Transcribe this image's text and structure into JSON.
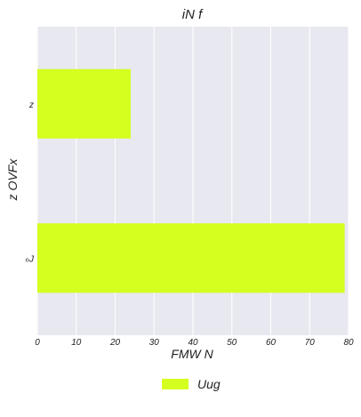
{
  "chart_data": {
    "type": "bar",
    "orientation": "horizontal",
    "title": "iN f",
    "xlabel": "FMW  N",
    "ylabel": "z OVFx",
    "categories": [
      "z",
      "ℴJ"
    ],
    "series": [
      {
        "name": "Uug",
        "values": [
          24,
          79
        ]
      }
    ],
    "xlim": [
      0,
      80
    ],
    "xticks": [
      0,
      10,
      20,
      30,
      40,
      50,
      60,
      70,
      80
    ],
    "grid": true,
    "legend_position": "bottom-center",
    "colors": {
      "bar": "#d4ff1f",
      "plot_background": "#e8e8f1",
      "grid": "#ffffff"
    }
  }
}
